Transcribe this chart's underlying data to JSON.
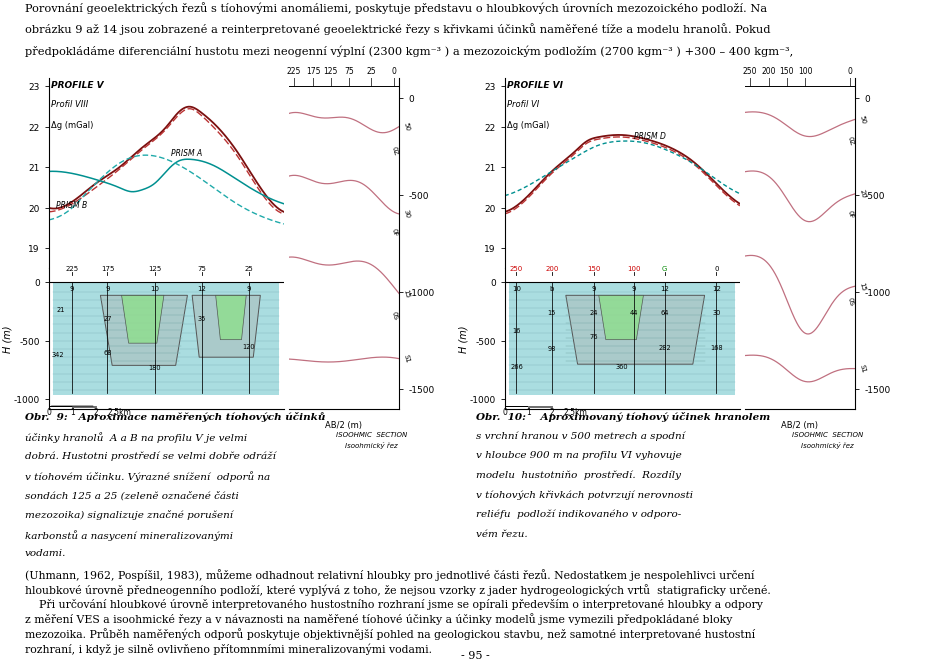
{
  "top_text_lines": [
    "Porovnání geoelektrických řezů s tíohovými anomáliemi, poskytuje představu o hloubkových úrovních mezozoického podloží. Na",
    "obrázku 9 až 14 jsou zobrazené a reinterpretované geoelektrické řezy s křivkami účinků naměřené tíže a modelu hranolů. Pokud",
    "předpokládáme diferenciální hustotu mezi neogenní výplní (2300 kgm⁻³ ) a mezozoickým podložím (2700 kgm⁻³ ) +300 – 400 kgm⁻³,"
  ],
  "fig9_caption_line1": "Obr.  9:   Aproximace naměřených tíohových účinků",
  "fig9_caption_lines": [
    "účinky hranolů  A a B na profilu V je velmi",
    "dobrá. Hustotni prostředí se velmi dobře odráží",
    "v tíohovém účinku. Výrazné snížení  odporů na",
    "sondách 125 a 25 (zeleně označené části",
    "mezozoika) signalizuje značné porušení",
    "karbonstů a nasycení mineralizovanými",
    "vodami."
  ],
  "fig10_caption_line1": "Obr.  10:    Aproximovaný tíohový účinek hranolem",
  "fig10_caption_lines": [
    "s vrchní hranou v 500 metrech a spodní",
    "v hloubce 900 m na profilu VI vyhovuje",
    "modelu  hustotniňo  prostředí.  Rozdíly",
    "v tíohových křivkách potvrzují nerovnosti",
    "reliéfu  podloží indikovaného v odporo-",
    "vém řezu."
  ],
  "bottom_text_lines": [
    "(Uhmann, 1962, Pospíšil, 1983), můžeme odhadnout relativní hloubky pro jednotlivé části řezů. Nedostatkem je nespolehlivci určení",
    "hloubkové úrovně předneogenního podloží, které vyplývá z toho, že nejsou vzorky z jader hydrogeologických vrtů  statigraficky určené.",
    "    Při určování hloubkové úrovně interpretovaného hustostního rozhraní jsme se opírali především o interpretované hloubky a odpory",
    "z měření VES a isoohmické řezy a v návaznosti na naměřené tíohové účinky a účinky modelů jsme vymezili předpokládané bloky",
    "mezozoika. Průběh naměřených odporů poskytuje objektivnější pohled na geologickou stavbu, než samotné interpretované hustostní",
    "rozhraní, i když je silně ovlivňeno přítomnmími mineralizovanými vodami."
  ],
  "page_number": "- 95 -",
  "background_color": "#ffffff"
}
